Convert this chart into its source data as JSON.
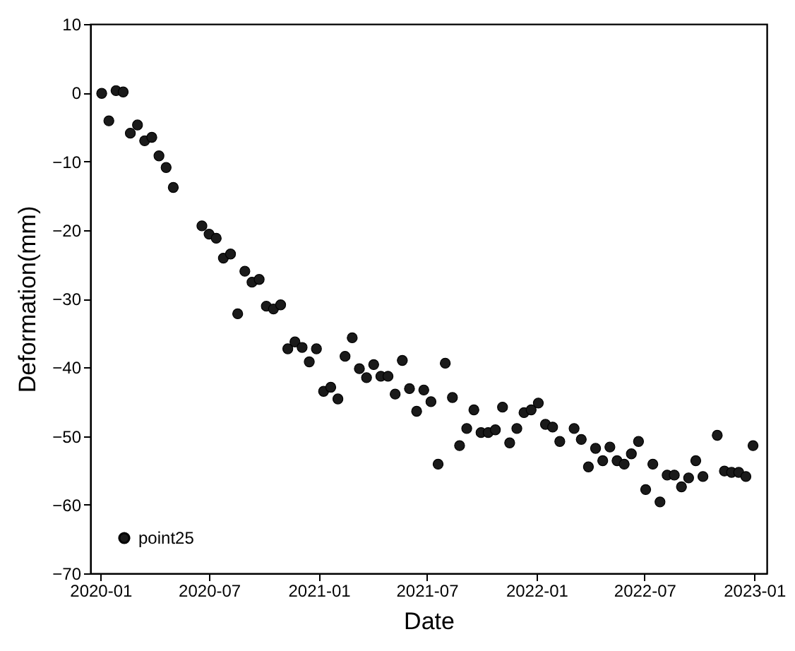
{
  "chart_data": {
    "type": "scatter",
    "xlabel": "Date",
    "ylabel": "Deformation(mm)",
    "x": [
      "2020-01-03",
      "2020-01-15",
      "2020-01-27",
      "2020-02-08",
      "2020-02-20",
      "2020-03-03",
      "2020-03-15",
      "2020-03-27",
      "2020-04-08",
      "2020-04-20",
      "2020-05-02",
      "2020-06-19",
      "2020-07-01",
      "2020-07-13",
      "2020-07-25",
      "2020-08-06",
      "2020-08-18",
      "2020-08-30",
      "2020-09-11",
      "2020-09-23",
      "2020-10-05",
      "2020-10-17",
      "2020-10-29",
      "2020-11-10",
      "2020-11-22",
      "2020-12-04",
      "2020-12-16",
      "2020-12-28",
      "2021-01-09",
      "2021-01-21",
      "2021-02-02",
      "2021-02-14",
      "2021-02-26",
      "2021-03-10",
      "2021-03-22",
      "2021-04-03",
      "2021-04-15",
      "2021-04-27",
      "2021-05-09",
      "2021-05-21",
      "2021-06-02",
      "2021-06-14",
      "2021-06-26",
      "2021-07-08",
      "2021-07-20",
      "2021-08-01",
      "2021-08-13",
      "2021-08-25",
      "2021-09-06",
      "2021-09-18",
      "2021-09-30",
      "2021-10-12",
      "2021-10-24",
      "2021-11-05",
      "2021-11-17",
      "2021-11-29",
      "2021-12-11",
      "2021-12-23",
      "2022-01-04",
      "2022-01-16",
      "2022-01-28",
      "2022-02-09",
      "2022-03-05",
      "2022-03-17",
      "2022-03-29",
      "2022-04-10",
      "2022-04-22",
      "2022-05-04",
      "2022-05-16",
      "2022-05-28",
      "2022-06-09",
      "2022-06-21",
      "2022-07-03",
      "2022-07-15",
      "2022-07-27",
      "2022-08-08",
      "2022-08-20",
      "2022-09-01",
      "2022-09-13",
      "2022-09-25",
      "2022-10-07",
      "2022-10-31",
      "2022-11-12",
      "2022-11-24",
      "2022-12-06",
      "2022-12-18",
      "2022-12-30"
    ],
    "series": [
      {
        "name": "point25",
        "color": "#1a1a1a",
        "values": [
          -0.1,
          -4.1,
          0.3,
          0.1,
          -5.9,
          -4.7,
          -7.0,
          -6.5,
          -9.2,
          -10.9,
          -13.8,
          -19.4,
          -20.6,
          -21.2,
          -24.1,
          -23.5,
          -32.2,
          -26,
          -27.6,
          -27.2,
          -31.1,
          -31.5,
          -30.9,
          -37.3,
          -36.3,
          -37.1,
          -39.2,
          -37.3,
          -43.5,
          -42.9,
          -44.6,
          -38.4,
          -35.7,
          -40.2,
          -41.5,
          -39.6,
          -41.3,
          -41.3,
          -43.9,
          -39,
          -43.1,
          -46.4,
          -43.3,
          -45,
          -54.1,
          -39.4,
          -44.4,
          -51.4,
          -48.9,
          -46.2,
          -49.5,
          -49.5,
          -49.1,
          -45.8,
          -51,
          -48.9,
          -46.6,
          -46.2,
          -45.2,
          -48.3,
          -48.7,
          -50.8,
          -48.9,
          -50.5,
          -54.5,
          -51.8,
          -53.6,
          -51.6,
          -53.6,
          -54.1,
          -52.6,
          -50.8,
          -57.8,
          -54.1,
          -59.6,
          -55.7,
          -55.7,
          -57.4,
          -56.1,
          -53.6,
          -55.9,
          -49.9,
          -55.1,
          -55.3,
          -55.3,
          -55.9,
          -51.4
        ]
      }
    ],
    "xlim": [
      "2019-12-15",
      "2023-01-22"
    ],
    "xticks": [
      "2020-01",
      "2020-07",
      "2021-01",
      "2021-07",
      "2022-01",
      "2022-07",
      "2023-01"
    ],
    "ylim": [
      -70,
      10
    ],
    "yticks": [
      {
        "value": -70,
        "label": "−70"
      },
      {
        "value": -60,
        "label": "−60"
      },
      {
        "value": -50,
        "label": "−50"
      },
      {
        "value": -40,
        "label": "−40"
      },
      {
        "value": -30,
        "label": "−30"
      },
      {
        "value": -20,
        "label": "−20"
      },
      {
        "value": -10,
        "label": "−10"
      },
      {
        "value": 0,
        "label": "0"
      },
      {
        "value": 10,
        "label": "10"
      }
    ],
    "marker": "circle",
    "legend": "bottom left"
  }
}
